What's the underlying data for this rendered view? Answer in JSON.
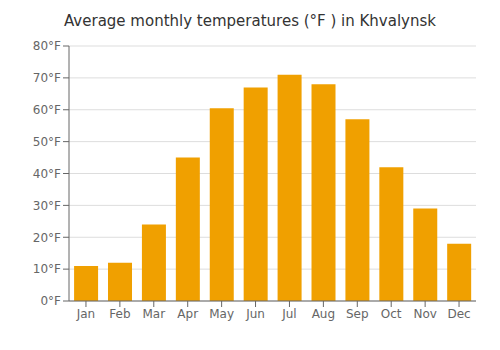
{
  "chart_data": {
    "type": "bar",
    "title": "Average monthly temperatures (°F ) in Khvalynsk",
    "categories": [
      "Jan",
      "Feb",
      "Mar",
      "Apr",
      "May",
      "Jun",
      "Jul",
      "Aug",
      "Sep",
      "Oct",
      "Nov",
      "Dec"
    ],
    "values": [
      11,
      12,
      24,
      45,
      60.5,
      67,
      71,
      68,
      57,
      42,
      29,
      18
    ],
    "color": "#F0A000",
    "ylim": [
      0,
      80
    ],
    "yticks": [
      {
        "value": 0,
        "label": "0°F"
      },
      {
        "value": 10,
        "label": "10°F"
      },
      {
        "value": 20,
        "label": "20°F"
      },
      {
        "value": 30,
        "label": "30°F"
      },
      {
        "value": 40,
        "label": "40°F"
      },
      {
        "value": 50,
        "label": "50°F"
      },
      {
        "value": 60,
        "label": "60°F"
      },
      {
        "value": 70,
        "label": "70°F"
      },
      {
        "value": 80,
        "label": "80°F"
      }
    ],
    "grid": true
  }
}
